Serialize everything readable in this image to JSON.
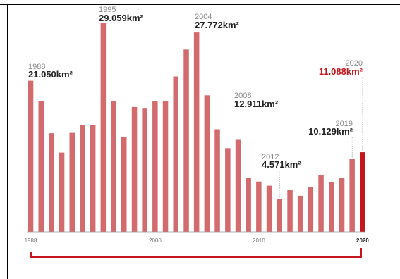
{
  "chart_data": {
    "type": "bar",
    "categories": [
      "1988",
      "1989",
      "1990",
      "1991",
      "1992",
      "1993",
      "1994",
      "1995",
      "1996",
      "1997",
      "1998",
      "1999",
      "2000",
      "2001",
      "2002",
      "2003",
      "2004",
      "2005",
      "2006",
      "2007",
      "2008",
      "2009",
      "2010",
      "2011",
      "2012",
      "2013",
      "2014",
      "2015",
      "2016",
      "2017",
      "2018",
      "2019",
      "2020"
    ],
    "values": [
      21.05,
      18.165,
      13.73,
      11.03,
      13.786,
      14.896,
      14.896,
      29.059,
      18.161,
      13.227,
      17.383,
      17.259,
      18.226,
      18.165,
      21.651,
      25.396,
      27.772,
      19.014,
      14.286,
      11.651,
      12.911,
      7.464,
      7.0,
      6.418,
      4.571,
      5.891,
      5.012,
      6.207,
      7.893,
      6.947,
      7.536,
      10.129,
      11.088
    ],
    "unit": "km²",
    "ylim": [
      0,
      30
    ],
    "x_ticks": [
      "1988",
      "2000",
      "2010",
      "2020"
    ],
    "annotations": [
      {
        "year": "1988",
        "value": "21.050km²"
      },
      {
        "year": "1995",
        "value": "29.059km²"
      },
      {
        "year": "2004",
        "value": "27.772km²"
      },
      {
        "year": "2008",
        "value": "12.911km²"
      },
      {
        "year": "2012",
        "value": "4.571km²"
      },
      {
        "year": "2019",
        "value": "10.129km²"
      },
      {
        "year": "2020",
        "value": "11.088km²"
      }
    ],
    "highlight_year": "2020",
    "colors": {
      "bar": "#d36a6e",
      "highlight": "#c4161c",
      "leader": "#b0b0b0",
      "axis": "#c4161c"
    },
    "grid": false,
    "legend": "none"
  }
}
